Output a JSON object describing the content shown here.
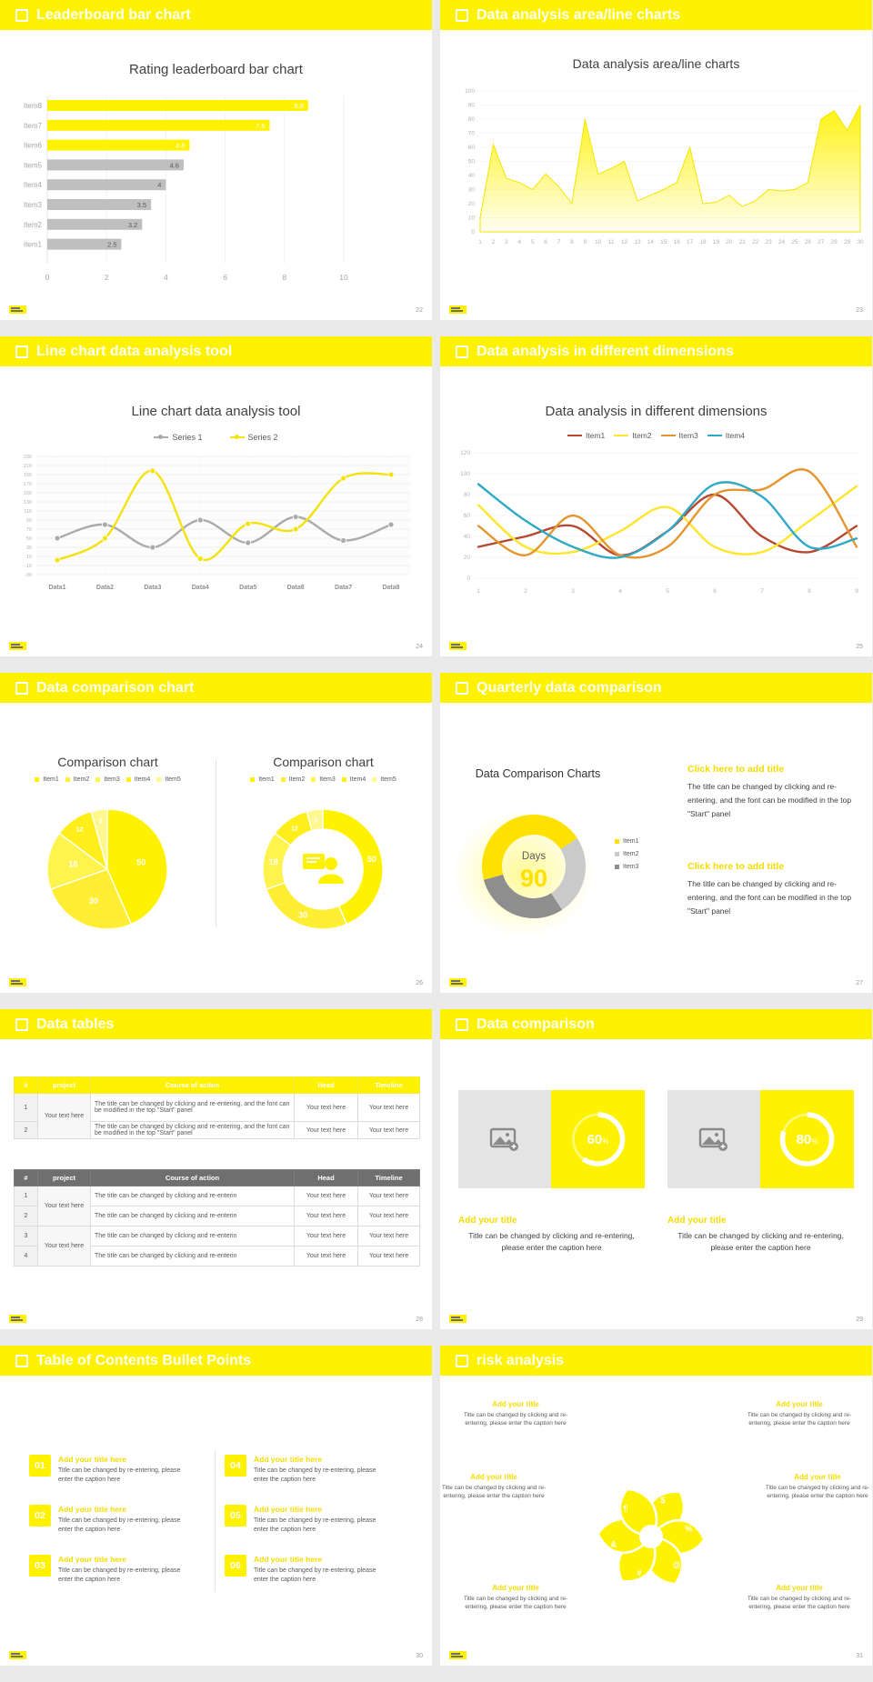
{
  "accent_color": "#FFF200",
  "slides": [
    {
      "header": "Leaderboard bar chart",
      "page": "22",
      "chart": {
        "type": "bar-horizontal",
        "title": "Rating leaderboard bar chart",
        "categories": [
          "Item1",
          "Item2",
          "Item3",
          "Item4",
          "Item5",
          "Item6",
          "Item7",
          "Item8"
        ],
        "values": [
          2.5,
          3.2,
          3.5,
          4,
          4.6,
          4.8,
          7.5,
          8.8
        ],
        "highlight_from_index": 5,
        "bar_color": "#BFBFBF",
        "highlight_color": "#FFF200",
        "xticks": [
          0,
          2,
          4,
          6,
          8,
          10
        ],
        "xlim": [
          0,
          10
        ]
      }
    },
    {
      "header": "Data analysis area/line charts",
      "page": "23",
      "chart": {
        "type": "area",
        "title": "Data analysis area/line charts",
        "x_labels": [
          1,
          2,
          3,
          4,
          5,
          6,
          7,
          8,
          9,
          10,
          11,
          12,
          13,
          14,
          15,
          16,
          17,
          18,
          19,
          20,
          21,
          22,
          23,
          24,
          25,
          26,
          27,
          28,
          29,
          30
        ],
        "values": [
          10,
          62,
          38,
          35,
          30,
          41,
          32,
          20,
          80,
          41,
          45,
          50,
          22,
          26,
          30,
          35,
          60,
          20,
          21,
          26,
          18,
          22,
          30,
          29,
          30,
          35,
          80,
          86,
          72,
          90
        ],
        "ylim": [
          0,
          100
        ],
        "yticks": [
          0,
          10,
          20,
          30,
          40,
          50,
          60,
          70,
          80,
          90,
          100
        ],
        "fill_color": "#FFF200"
      }
    },
    {
      "header": "Line chart data analysis tool",
      "page": "24",
      "chart": {
        "type": "line",
        "title": "Line chart data analysis tool",
        "categories": [
          "Data1",
          "Data2",
          "Data3",
          "Data4",
          "Data5",
          "Data6",
          "Data7",
          "Data8"
        ],
        "yticks": [
          230,
          210,
          190,
          170,
          150,
          130,
          110,
          90,
          70,
          50,
          30,
          10,
          -10,
          -30
        ],
        "series": [
          {
            "name": "Series 1",
            "color": "#ABABAB",
            "values": [
              50,
              80,
              30,
              90,
              40,
              97,
              45,
              80
            ]
          },
          {
            "name": "Series 2",
            "color": "#F2E30E",
            "values": [
              2,
              50,
              198,
              5,
              82,
              70,
              182,
              190
            ]
          }
        ]
      }
    },
    {
      "header": "Data analysis in different dimensions",
      "page": "25",
      "chart": {
        "type": "multiline",
        "title": "Data analysis in different dimensions",
        "x_labels": [
          1,
          2,
          3,
          4,
          5,
          6,
          7,
          8,
          9
        ],
        "ylim": [
          0,
          120
        ],
        "yticks": [
          0,
          20,
          40,
          60,
          80,
          100,
          120
        ],
        "series": [
          {
            "name": "Item1",
            "color": "#B8472F",
            "values": [
              30,
              40,
              50,
              22,
              45,
              80,
              40,
              25,
              50
            ]
          },
          {
            "name": "Item2",
            "color": "#FFE52B",
            "values": [
              70,
              30,
              25,
              45,
              68,
              30,
              25,
              55,
              88
            ]
          },
          {
            "name": "Item3",
            "color": "#E5952F",
            "values": [
              50,
              22,
              60,
              22,
              30,
              80,
              85,
              102,
              30
            ]
          },
          {
            "name": "Item4",
            "color": "#2FA9C4",
            "values": [
              90,
              55,
              30,
              20,
              45,
              90,
              78,
              30,
              38
            ]
          }
        ]
      }
    },
    {
      "header": "Data comparison chart",
      "page": "26",
      "charts": [
        {
          "type": "pie",
          "title": "Comparison chart",
          "labels": [
            "Item1",
            "Item2",
            "Item3",
            "Item4",
            "Item5"
          ],
          "values": [
            50,
            30,
            18,
            12,
            5
          ],
          "colors": [
            "#FFF200",
            "#FFEE33",
            "#FFF34D",
            "#FFEE1A",
            "#FFF88E"
          ]
        },
        {
          "type": "donut",
          "title": "Comparison chart",
          "labels": [
            "Item1",
            "Item2",
            "Item3",
            "Item4",
            "Item5"
          ],
          "values": [
            50,
            30,
            18,
            12,
            5
          ],
          "colors": [
            "#FFF200",
            "#FFEE33",
            "#FFF34D",
            "#FFEE1A",
            "#FFF88E"
          ],
          "center_icon": "presenter-icon"
        }
      ]
    },
    {
      "header": "Quarterly data comparison",
      "page": "27",
      "chart": {
        "type": "donut",
        "title": "Data Comparison Charts",
        "labels": [
          "Item1",
          "Item2",
          "Item3"
        ],
        "values": [
          45,
          25,
          30
        ],
        "colors": [
          "#FFE100",
          "#CACACA",
          "#8E8E8E"
        ],
        "center_label": "Days",
        "center_value": "90"
      },
      "blocks": [
        {
          "title": "Click here to add title",
          "body": "The title can be changed by clicking and re-entering, and the font can be modified in the top \"Start\" panel"
        },
        {
          "title": "Click here to add title",
          "body": "The title can be changed by clicking and re-entering, and the font can be modified in the top \"Start\" panel"
        }
      ]
    },
    {
      "header": "Data tables",
      "page": "28",
      "tables": [
        {
          "style": "yellow",
          "columns": [
            "#",
            "project",
            "Course of action",
            "Head",
            "Timeline"
          ],
          "rows": [
            {
              "num": "1",
              "project": "Your text here",
              "course": "The title can be changed by clicking and re-entering, and the font can be modified in the top \"Start\" panel",
              "head": "Your text here",
              "timeline": "Your text here"
            },
            {
              "num": "2",
              "project": null,
              "course": "The title can be changed by clicking and re-entering, and the font can be modified in the top \"Start\" panel",
              "head": "Your text here",
              "timeline": "Your text here"
            }
          ]
        },
        {
          "style": "gray",
          "columns": [
            "#",
            "project",
            "Course of action",
            "Head",
            "Timeline"
          ],
          "rows": [
            {
              "num": "1",
              "project": "Your text here",
              "course": "The title can be changed by clicking and re-enterin",
              "head": "Your text here",
              "timeline": "Your text here"
            },
            {
              "num": "2",
              "project": null,
              "course": "The title can be changed by clicking and re-enterin",
              "head": "Your text here",
              "timeline": "Your text here"
            },
            {
              "num": "3",
              "project": "Your text here",
              "course": "The title can be changed by clicking and re-enterin",
              "head": "Your text here",
              "timeline": "Your text here"
            },
            {
              "num": "4",
              "project": null,
              "course": "The title can be changed by clicking and re-enterin",
              "head": "Your text here",
              "timeline": "Your text here"
            }
          ]
        }
      ]
    },
    {
      "header": "Data comparison",
      "page": "29",
      "cards": [
        {
          "percent": 60,
          "percent_text": "60",
          "percent_sign": "%"
        },
        {
          "percent": 80,
          "percent_text": "80",
          "percent_sign": "%"
        }
      ],
      "card_title": "Add your title",
      "card_caption": "Title can be changed by clicking and re-entering, please enter the caption here"
    },
    {
      "header": "Table of Contents Bullet Points",
      "page": "30",
      "items": [
        {
          "number": "01"
        },
        {
          "number": "02"
        },
        {
          "number": "03"
        },
        {
          "number": "04"
        },
        {
          "number": "05"
        },
        {
          "number": "06"
        }
      ],
      "item_title": "Add your title here",
      "item_caption": "Title can be changed by re-entering, please enter the caption here"
    },
    {
      "header": "risk analysis",
      "page": "31",
      "block_title": "Add your title",
      "block_caption": "Title can be changed by clicking and re-entering, please enter the caption here",
      "icons": [
        {
          "name": "money-bag-icon",
          "glyph": "$"
        },
        {
          "name": "chart-icon",
          "glyph": "%"
        },
        {
          "name": "user-icon",
          "glyph": "@"
        },
        {
          "name": "bank-icon",
          "glyph": "#"
        },
        {
          "name": "calculator-icon",
          "glyph": "&"
        },
        {
          "name": "target-icon",
          "glyph": "¶"
        }
      ]
    }
  ]
}
